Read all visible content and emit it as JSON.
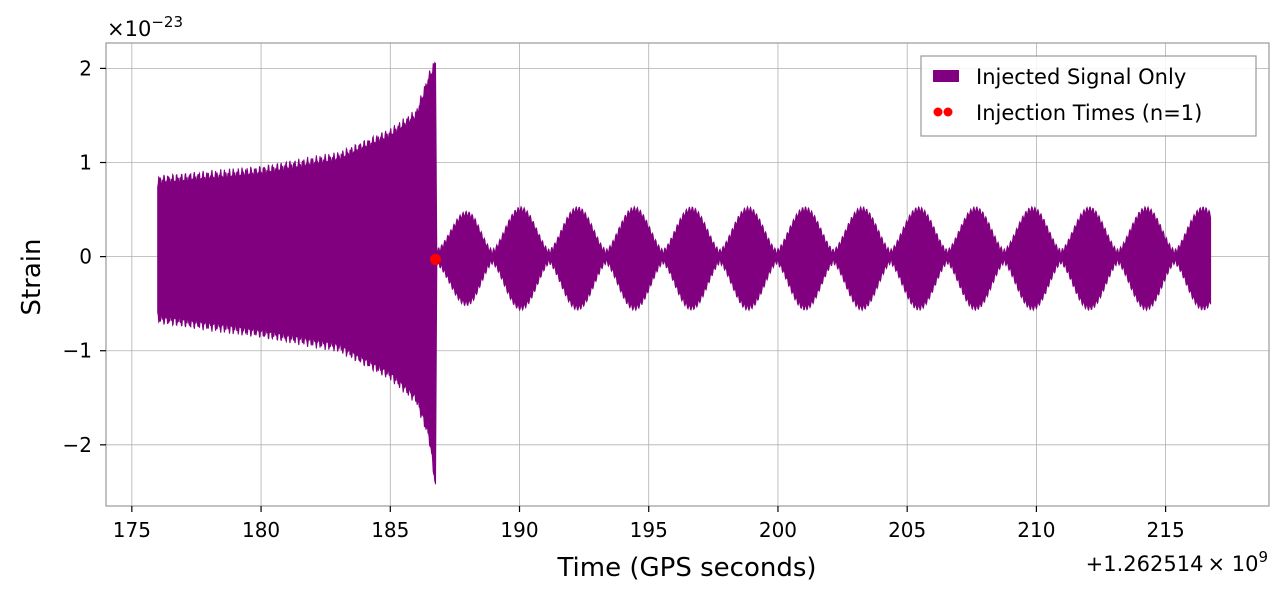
{
  "chart_data": {
    "type": "line",
    "title": "",
    "xlabel": "Time (GPS seconds)",
    "ylabel": "Strain",
    "x_offset_text": "+1.262514",
    "x_offset_mult": "× 10",
    "x_offset_exp": "9",
    "y_scale_text": "×10",
    "y_scale_exp": "−23",
    "xlim": [
      174,
      219
    ],
    "ylim": [
      -2.65,
      2.27
    ],
    "x_ticks": [
      175,
      180,
      185,
      190,
      195,
      200,
      205,
      210,
      215
    ],
    "x_tick_labels": [
      "175",
      "180",
      "185",
      "190",
      "195",
      "200",
      "205",
      "210",
      "215"
    ],
    "y_ticks": [
      2,
      1,
      0,
      -1,
      -2
    ],
    "y_tick_labels": [
      "2",
      "1",
      "0",
      "−1",
      "−2"
    ],
    "grid": true,
    "legend_position": "top-right",
    "series": [
      {
        "name": "Injected Signal Only",
        "color": "#800080",
        "signal": {
          "start": 176.0,
          "merger": 186.75,
          "end": 216.75,
          "inspiral_envelope": [
            {
              "t": 176.0,
              "upper": 0.8,
              "lower": -0.65
            },
            {
              "t": 180.0,
              "upper": 0.9,
              "lower": -0.8
            },
            {
              "t": 183.0,
              "upper": 1.05,
              "lower": -0.95
            },
            {
              "t": 185.0,
              "upper": 1.3,
              "lower": -1.25
            },
            {
              "t": 186.0,
              "upper": 1.5,
              "lower": -1.5
            },
            {
              "t": 186.5,
              "upper": 1.9,
              "lower": -1.9
            },
            {
              "t": 186.75,
              "upper": 2.05,
              "lower": -2.42
            }
          ],
          "post_merger_peak": 0.45,
          "post_merger_beat_period": 2.2
        }
      },
      {
        "name": "Injection Times (n=1)",
        "color": "#ff0000",
        "points": [
          {
            "x": 186.75,
            "y": -0.03
          }
        ]
      }
    ]
  }
}
